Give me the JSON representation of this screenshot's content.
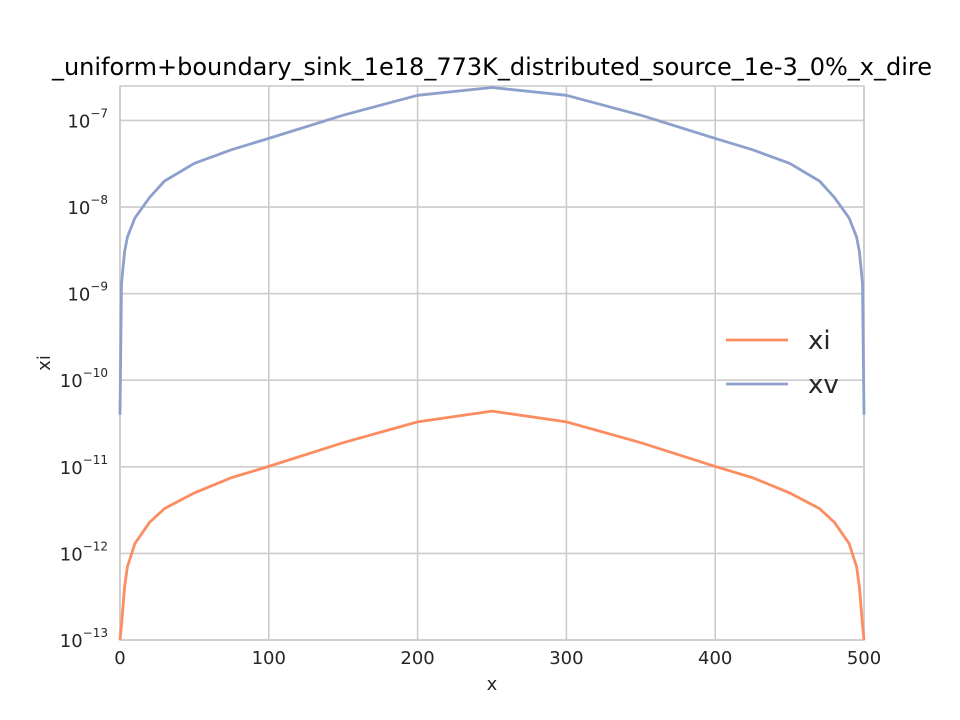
{
  "chart_data": {
    "type": "line",
    "title": "_uniform+boundary_sink_1e18_773K_distributed_source_1e-3_0%_x_dire",
    "xlabel": "x",
    "ylabel": "xi",
    "xlim": [
      0,
      500
    ],
    "ylim": [
      1e-13,
      2.5e-07
    ],
    "yscale": "log",
    "grid": true,
    "legend_position": "center-right",
    "x_ticks": [
      0,
      100,
      200,
      300,
      400,
      500
    ],
    "y_ticks": [
      {
        "base": "10",
        "exp": "−13",
        "value": 1e-13
      },
      {
        "base": "10",
        "exp": "−12",
        "value": 1e-12
      },
      {
        "base": "10",
        "exp": "−11",
        "value": 1e-11
      },
      {
        "base": "10",
        "exp": "−10",
        "value": 1e-10
      },
      {
        "base": "10",
        "exp": "−9",
        "value": 1e-09
      },
      {
        "base": "10",
        "exp": "−8",
        "value": 1e-08
      },
      {
        "base": "10",
        "exp": "−7",
        "value": 1e-07
      }
    ],
    "series": [
      {
        "name": "xi",
        "color": "#fc8d62",
        "x": [
          0,
          1,
          3,
          5,
          10,
          20,
          30,
          50,
          75,
          100,
          150,
          200,
          250,
          300,
          350,
          400,
          425,
          450,
          470,
          480,
          490,
          495,
          497,
          499,
          500
        ],
        "y": [
          1e-13,
          1.5e-13,
          4e-13,
          7e-13,
          1.3e-12,
          2.3e-12,
          3.3e-12,
          5e-12,
          7.5e-12,
          1.01e-11,
          1.9e-11,
          3.3e-11,
          4.4e-11,
          3.3e-11,
          1.9e-11,
          1.01e-11,
          7.5e-12,
          5e-12,
          3.3e-12,
          2.3e-12,
          1.3e-12,
          7e-13,
          4e-13,
          1.5e-13,
          1e-13
        ]
      },
      {
        "name": "xv",
        "color": "#8da0cb",
        "x": [
          0,
          1,
          3,
          5,
          10,
          20,
          30,
          50,
          75,
          100,
          150,
          200,
          250,
          300,
          350,
          400,
          425,
          450,
          470,
          480,
          490,
          495,
          497,
          499,
          500
        ],
        "y": [
          4e-11,
          1.3e-09,
          3e-09,
          4.5e-09,
          7.5e-09,
          1.3e-08,
          2e-08,
          3.2e-08,
          4.6e-08,
          6.2e-08,
          1.15e-07,
          1.95e-07,
          2.4e-07,
          1.95e-07,
          1.15e-07,
          6.2e-08,
          4.6e-08,
          3.2e-08,
          2e-08,
          1.3e-08,
          7.5e-09,
          4.5e-09,
          3e-09,
          1.3e-09,
          4e-11
        ]
      }
    ]
  }
}
